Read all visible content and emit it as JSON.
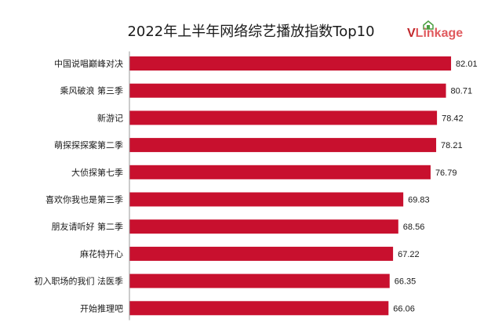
{
  "chart_data": {
    "type": "bar",
    "orientation": "horizontal",
    "title": "2022年上半年网络综艺播放指数Top10",
    "categories": [
      "中国说唱巅峰对决",
      "乘风破浪 第三季",
      "新游记",
      "萌探探探案第二季",
      "大侦探第七季",
      "喜欢你我也是第三季",
      "朋友请听好 第二季",
      "麻花特开心",
      "初入职场的我们 法医季",
      "开始推理吧"
    ],
    "values": [
      82.01,
      80.71,
      78.42,
      78.21,
      76.79,
      69.83,
      68.56,
      67.22,
      66.35,
      66.06
    ],
    "bar_color": "#c8102e",
    "axis_color": "#999999",
    "xlim": [
      0,
      90
    ],
    "grid": false,
    "legend": "none"
  },
  "brand": {
    "logo_v": "V",
    "logo_rest": "Linkage",
    "primary_color": "#c0262a",
    "secondary_color": "#e05a5e",
    "icon": "house-icon",
    "icon_color": "#4a9d3f"
  }
}
